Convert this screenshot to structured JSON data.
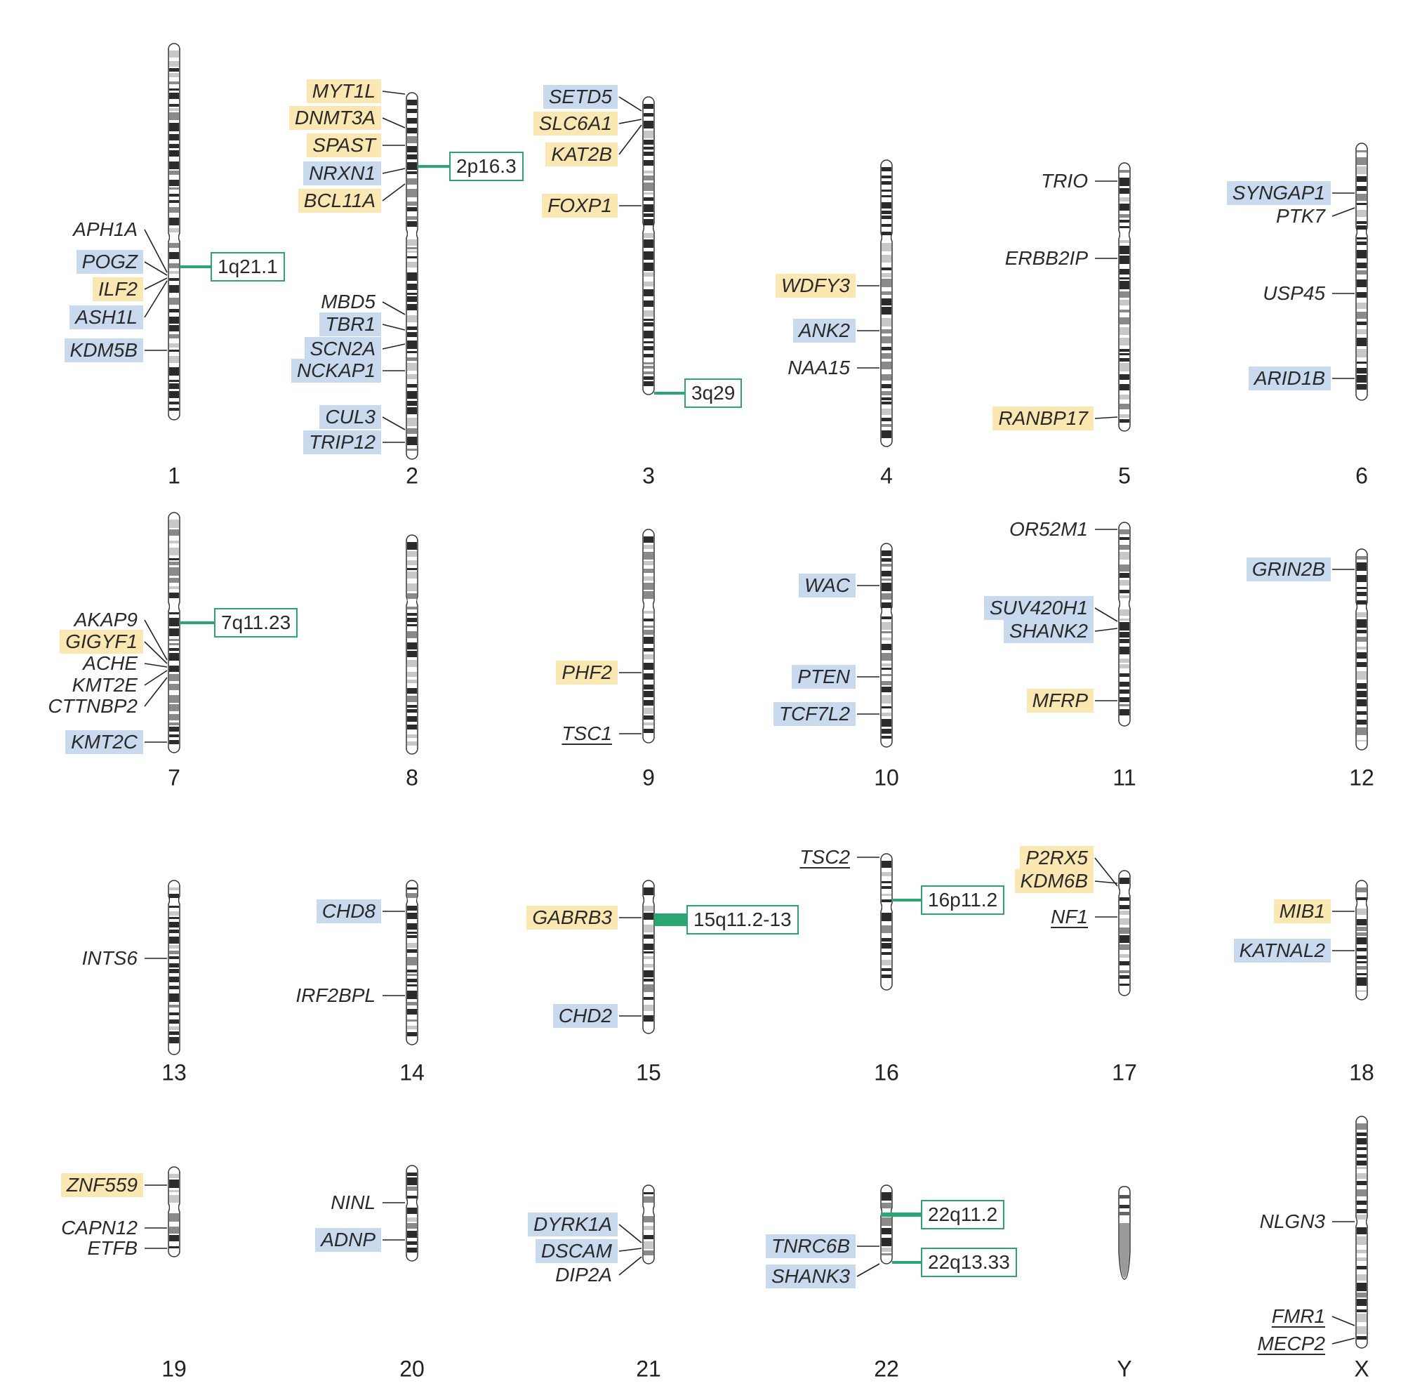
{
  "chromosomes": [
    {
      "name": "1",
      "genes": [
        {
          "label": "APH1A",
          "hl": "none"
        },
        {
          "label": "POGZ",
          "hl": "blue"
        },
        {
          "label": "ILF2",
          "hl": "yellow"
        },
        {
          "label": "ASH1L",
          "hl": "blue"
        },
        {
          "label": "KDM5B",
          "hl": "blue"
        }
      ],
      "regions": [
        {
          "label": "1q21.1"
        }
      ]
    },
    {
      "name": "2",
      "genes": [
        {
          "label": "MYT1L",
          "hl": "yellow"
        },
        {
          "label": "DNMT3A",
          "hl": "yellow"
        },
        {
          "label": "SPAST",
          "hl": "yellow"
        },
        {
          "label": "NRXN1",
          "hl": "blue"
        },
        {
          "label": "BCL11A",
          "hl": "yellow"
        },
        {
          "label": "MBD5",
          "hl": "none"
        },
        {
          "label": "TBR1",
          "hl": "blue"
        },
        {
          "label": "SCN2A",
          "hl": "blue"
        },
        {
          "label": "NCKAP1",
          "hl": "blue"
        },
        {
          "label": "CUL3",
          "hl": "blue"
        },
        {
          "label": "TRIP12",
          "hl": "blue"
        }
      ],
      "regions": [
        {
          "label": "2p16.3"
        }
      ]
    },
    {
      "name": "3",
      "genes": [
        {
          "label": "SETD5",
          "hl": "blue"
        },
        {
          "label": "SLC6A1",
          "hl": "yellow"
        },
        {
          "label": "KAT2B",
          "hl": "yellow"
        },
        {
          "label": "FOXP1",
          "hl": "yellow"
        }
      ],
      "regions": [
        {
          "label": "3q29"
        }
      ]
    },
    {
      "name": "4",
      "genes": [
        {
          "label": "WDFY3",
          "hl": "yellow"
        },
        {
          "label": "ANK2",
          "hl": "blue"
        },
        {
          "label": "NAA15",
          "hl": "none"
        }
      ],
      "regions": []
    },
    {
      "name": "5",
      "genes": [
        {
          "label": "TRIO",
          "hl": "none"
        },
        {
          "label": "ERBB2IP",
          "hl": "none"
        },
        {
          "label": "RANBP17",
          "hl": "yellow"
        }
      ],
      "regions": []
    },
    {
      "name": "6",
      "genes": [
        {
          "label": "SYNGAP1",
          "hl": "blue"
        },
        {
          "label": "PTK7",
          "hl": "none"
        },
        {
          "label": "USP45",
          "hl": "none"
        },
        {
          "label": "ARID1B",
          "hl": "blue"
        }
      ],
      "regions": []
    },
    {
      "name": "7",
      "genes": [
        {
          "label": "AKAP9",
          "hl": "none"
        },
        {
          "label": "GIGYF1",
          "hl": "yellow"
        },
        {
          "label": "ACHE",
          "hl": "none"
        },
        {
          "label": "KMT2E",
          "hl": "none"
        },
        {
          "label": "CTTNBP2",
          "hl": "none"
        },
        {
          "label": "KMT2C",
          "hl": "blue"
        }
      ],
      "regions": [
        {
          "label": "7q11.23"
        }
      ]
    },
    {
      "name": "8",
      "genes": [],
      "regions": []
    },
    {
      "name": "9",
      "genes": [
        {
          "label": "PHF2",
          "hl": "yellow"
        },
        {
          "label": "TSC1",
          "hl": "none",
          "underline": true
        }
      ],
      "regions": []
    },
    {
      "name": "10",
      "genes": [
        {
          "label": "WAC",
          "hl": "blue"
        },
        {
          "label": "PTEN",
          "hl": "blue"
        },
        {
          "label": "TCF7L2",
          "hl": "blue"
        }
      ],
      "regions": []
    },
    {
      "name": "11",
      "genes": [
        {
          "label": "OR52M1",
          "hl": "none"
        },
        {
          "label": "SUV420H1",
          "hl": "blue"
        },
        {
          "label": "SHANK2",
          "hl": "blue"
        },
        {
          "label": "MFRP",
          "hl": "yellow"
        }
      ],
      "regions": []
    },
    {
      "name": "12",
      "genes": [
        {
          "label": "GRIN2B",
          "hl": "blue"
        }
      ],
      "regions": []
    },
    {
      "name": "13",
      "genes": [
        {
          "label": "INTS6",
          "hl": "none"
        }
      ],
      "regions": []
    },
    {
      "name": "14",
      "genes": [
        {
          "label": "CHD8",
          "hl": "blue"
        },
        {
          "label": "IRF2BPL",
          "hl": "none"
        }
      ],
      "regions": []
    },
    {
      "name": "15",
      "genes": [
        {
          "label": "GABRB3",
          "hl": "yellow"
        },
        {
          "label": "CHD2",
          "hl": "blue"
        }
      ],
      "regions": [
        {
          "label": "15q11.2-13"
        }
      ]
    },
    {
      "name": "16",
      "genes": [
        {
          "label": "TSC2",
          "hl": "none",
          "underline": true
        }
      ],
      "regions": [
        {
          "label": "16p11.2"
        }
      ]
    },
    {
      "name": "17",
      "genes": [
        {
          "label": "P2RX5",
          "hl": "yellow"
        },
        {
          "label": "KDM6B",
          "hl": "yellow"
        },
        {
          "label": "NF1",
          "hl": "none",
          "underline": true
        }
      ],
      "regions": []
    },
    {
      "name": "18",
      "genes": [
        {
          "label": "MIB1",
          "hl": "yellow"
        },
        {
          "label": "KATNAL2",
          "hl": "blue"
        }
      ],
      "regions": []
    },
    {
      "name": "19",
      "genes": [
        {
          "label": "ZNF559",
          "hl": "yellow"
        },
        {
          "label": "CAPN12",
          "hl": "none"
        },
        {
          "label": "ETFB",
          "hl": "none"
        }
      ],
      "regions": []
    },
    {
      "name": "20",
      "genes": [
        {
          "label": "NINL",
          "hl": "none"
        },
        {
          "label": "ADNP",
          "hl": "blue"
        }
      ],
      "regions": []
    },
    {
      "name": "21",
      "genes": [
        {
          "label": "DYRK1A",
          "hl": "blue"
        },
        {
          "label": "DSCAM",
          "hl": "blue"
        },
        {
          "label": "DIP2A",
          "hl": "none"
        }
      ],
      "regions": []
    },
    {
      "name": "22",
      "genes": [
        {
          "label": "TNRC6B",
          "hl": "blue"
        },
        {
          "label": "SHANK3",
          "hl": "blue"
        }
      ],
      "regions": [
        {
          "label": "22q11.2"
        },
        {
          "label": "22q13.33"
        }
      ]
    },
    {
      "name": "Y",
      "genes": [],
      "regions": []
    },
    {
      "name": "X",
      "genes": [
        {
          "label": "NLGN3",
          "hl": "none"
        },
        {
          "label": "FMR1",
          "hl": "none",
          "underline": true
        },
        {
          "label": "MECP2",
          "hl": "none",
          "underline": true
        }
      ],
      "regions": []
    }
  ],
  "colors": {
    "yellow_highlight": "#fbe7b2",
    "blue_highlight": "#c9daef",
    "region_green": "#2aa673",
    "band_dark": "#2b2b2b",
    "band_gray": "#8a8a8a"
  }
}
